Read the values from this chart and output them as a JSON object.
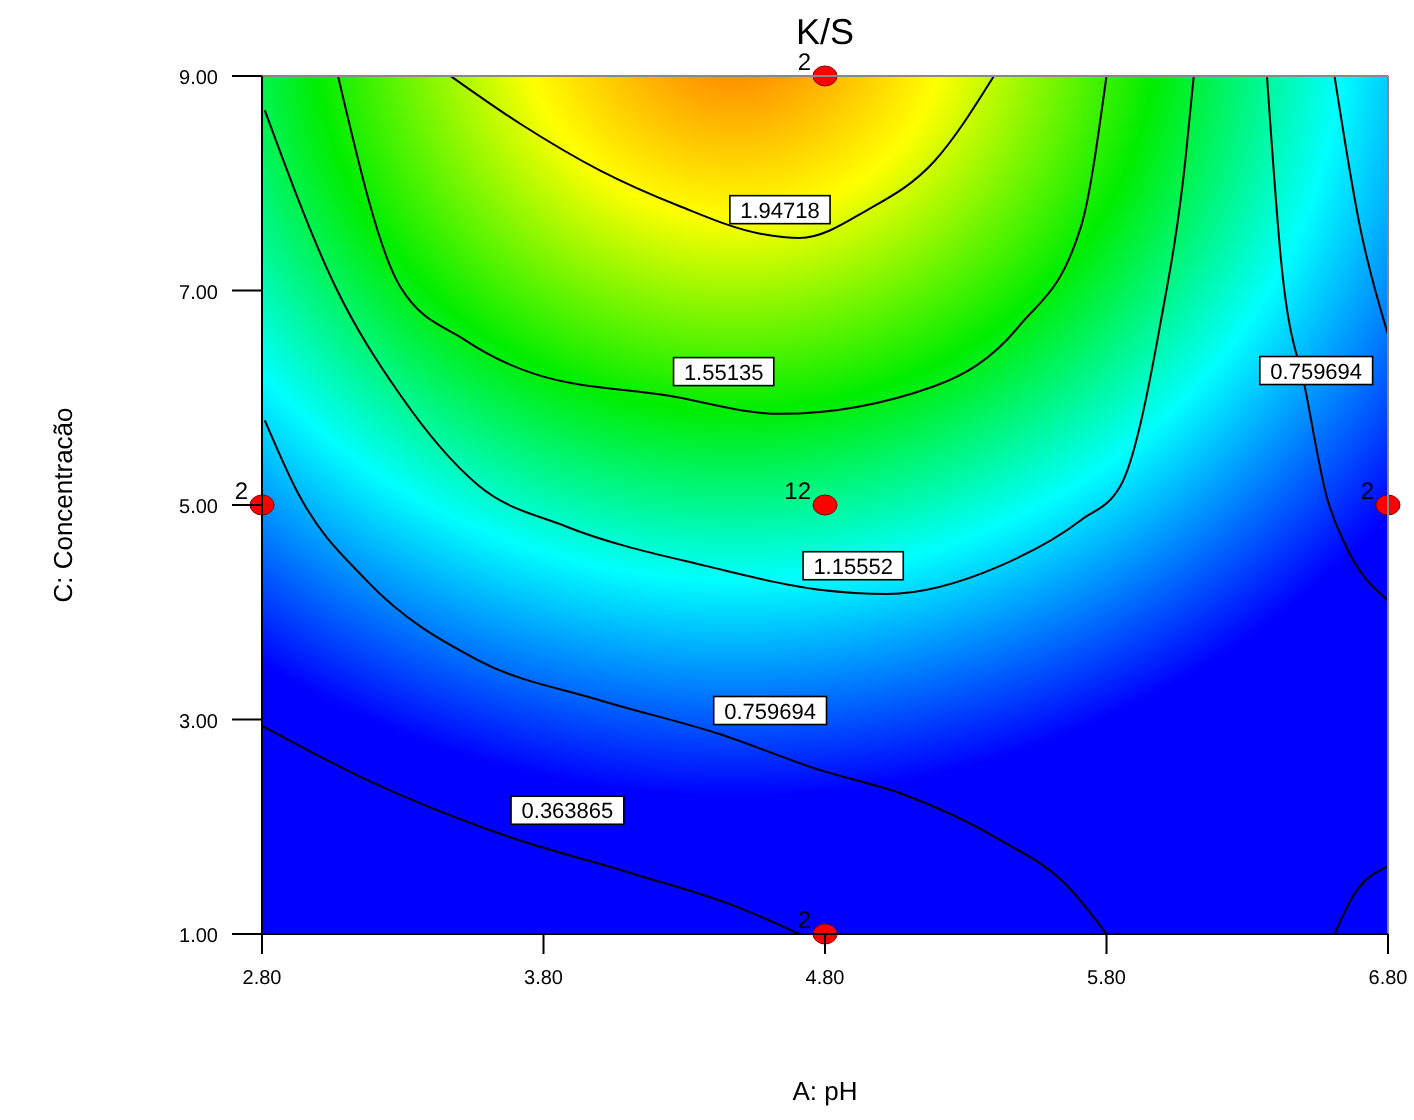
{
  "chart_data": {
    "type": "line",
    "title": "K/S",
    "xlabel": "A: pH",
    "ylabel": "C: Concentracão",
    "xlim": [
      2.8,
      6.8
    ],
    "ylim": [
      1,
      9
    ],
    "xticks": [
      {
        "value": 2.8,
        "label": "2.80"
      },
      {
        "value": 3.8,
        "label": "3.80"
      },
      {
        "value": 4.8,
        "label": "4.80"
      },
      {
        "value": 5.8,
        "label": "5.80"
      },
      {
        "value": 6.8,
        "label": "6.80"
      }
    ],
    "yticks": [
      {
        "value": 1,
        "label": "1.00"
      },
      {
        "value": 3,
        "label": "3.00"
      },
      {
        "value": 5,
        "label": "5.00"
      },
      {
        "value": 7,
        "label": "7.00"
      },
      {
        "value": 9,
        "label": "9.00"
      }
    ],
    "series": [
      {
        "name": "1.94718",
        "color": "#000000",
        "x": [
          3.47,
          3.72,
          4.0,
          4.28,
          4.57,
          4.71,
          4.95,
          5.19,
          5.4
        ],
        "values": [
          9,
          8.55,
          8.12,
          7.79,
          7.53,
          7.49,
          7.75,
          8.21,
          9
        ]
      },
      {
        "name": "1.55135",
        "color": "#000000",
        "x": [
          3.07,
          3.29,
          3.52,
          3.77,
          4.24,
          4.64,
          5.19,
          5.49,
          5.71,
          5.8
        ],
        "values": [
          9,
          7.04,
          6.54,
          6.22,
          6.02,
          5.85,
          6.11,
          6.67,
          7.6,
          9
        ]
      },
      {
        "name": "1.15552",
        "color": "#000000",
        "x": [
          2.81,
          3.06,
          3.29,
          3.57,
          3.88,
          4.38,
          4.78,
          5.02,
          5.42,
          5.71,
          5.85,
          5.99,
          6.08,
          6.11
        ],
        "values": [
          8.68,
          7.04,
          6.03,
          5.18,
          4.8,
          4.43,
          4.21,
          4.17,
          4.43,
          4.86,
          5.18,
          6.67,
          8.21,
          9
        ]
      },
      {
        "name": "0.759694",
        "color": "#000000",
        "x": [
          2.81,
          2.93,
          3.17,
          3.57,
          4.0,
          4.43,
          4.78,
          5.07,
          5.42,
          5.66,
          5.8
        ],
        "values": [
          5.79,
          5.1,
          4.3,
          3.55,
          3.18,
          2.86,
          2.53,
          2.31,
          1.88,
          1.45,
          1
        ]
      },
      {
        "name": "0.759694",
        "color": "#000000",
        "x": [
          6.37,
          6.42,
          6.51,
          6.58,
          6.65,
          6.8
        ],
        "values": [
          9,
          7.28,
          6.03,
          5.1,
          4.62,
          4.11
        ]
      },
      {
        "color": "#000000",
        "x": [
          6.61,
          6.7,
          6.8
        ],
        "values": [
          9,
          7.6,
          6.59
        ]
      },
      {
        "name": "0.363865",
        "color": "#000000",
        "x": [
          2.8,
          3.17,
          3.65,
          4.12,
          4.48,
          4.71
        ],
        "values": [
          2.94,
          2.44,
          1.93,
          1.56,
          1.26,
          1
        ]
      },
      {
        "color": "#000000",
        "x": [
          6.61,
          6.68,
          6.8
        ],
        "values": [
          1,
          1.37,
          1.63
        ]
      },
      {
        "type": "scatter",
        "color": "#ff0000",
        "marker": "circle",
        "x": [
          2.8,
          4.8,
          4.8,
          4.8,
          6.8
        ],
        "values": [
          5,
          9,
          5,
          1,
          5
        ]
      }
    ],
    "annotations": [
      {
        "text": "2",
        "x": 2.8,
        "y": 5
      },
      {
        "text": "2",
        "x": 4.8,
        "y": 9
      },
      {
        "text": "12",
        "x": 4.8,
        "y": 5
      },
      {
        "text": "2",
        "x": 4.8,
        "y": 1
      },
      {
        "text": "2",
        "x": 6.8,
        "y": 5
      }
    ]
  }
}
